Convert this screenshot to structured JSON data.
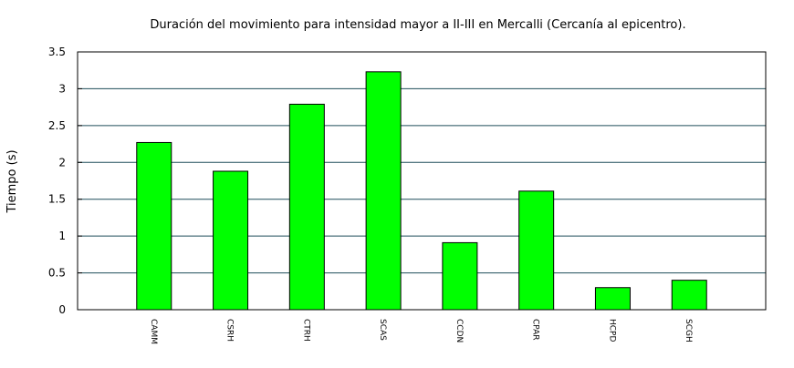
{
  "chart_data": {
    "type": "bar",
    "title": "Duración del movimiento para intensidad mayor a II-III en Mercalli (Cercanía al epicentro).",
    "xlabel": "",
    "ylabel": "Tiempo (s)",
    "categories": [
      "CAMM",
      "CSRH",
      "CTRH",
      "SCAS",
      "CCDN",
      "CPAR",
      "HCPD",
      "SCGH"
    ],
    "values": [
      2.27,
      1.88,
      2.79,
      3.23,
      0.91,
      1.61,
      0.3,
      0.4
    ],
    "ylim": [
      0,
      3.5
    ],
    "yticks": [
      "0",
      "0.5",
      "1",
      "1.5",
      "2",
      "2.5",
      "3",
      "3.5"
    ],
    "grid": true,
    "legend": "none",
    "colors": {
      "bar_fill": "#00ff00",
      "bar_stroke": "#000000",
      "grid": "#1f4e5a",
      "frame": "#000000"
    }
  }
}
